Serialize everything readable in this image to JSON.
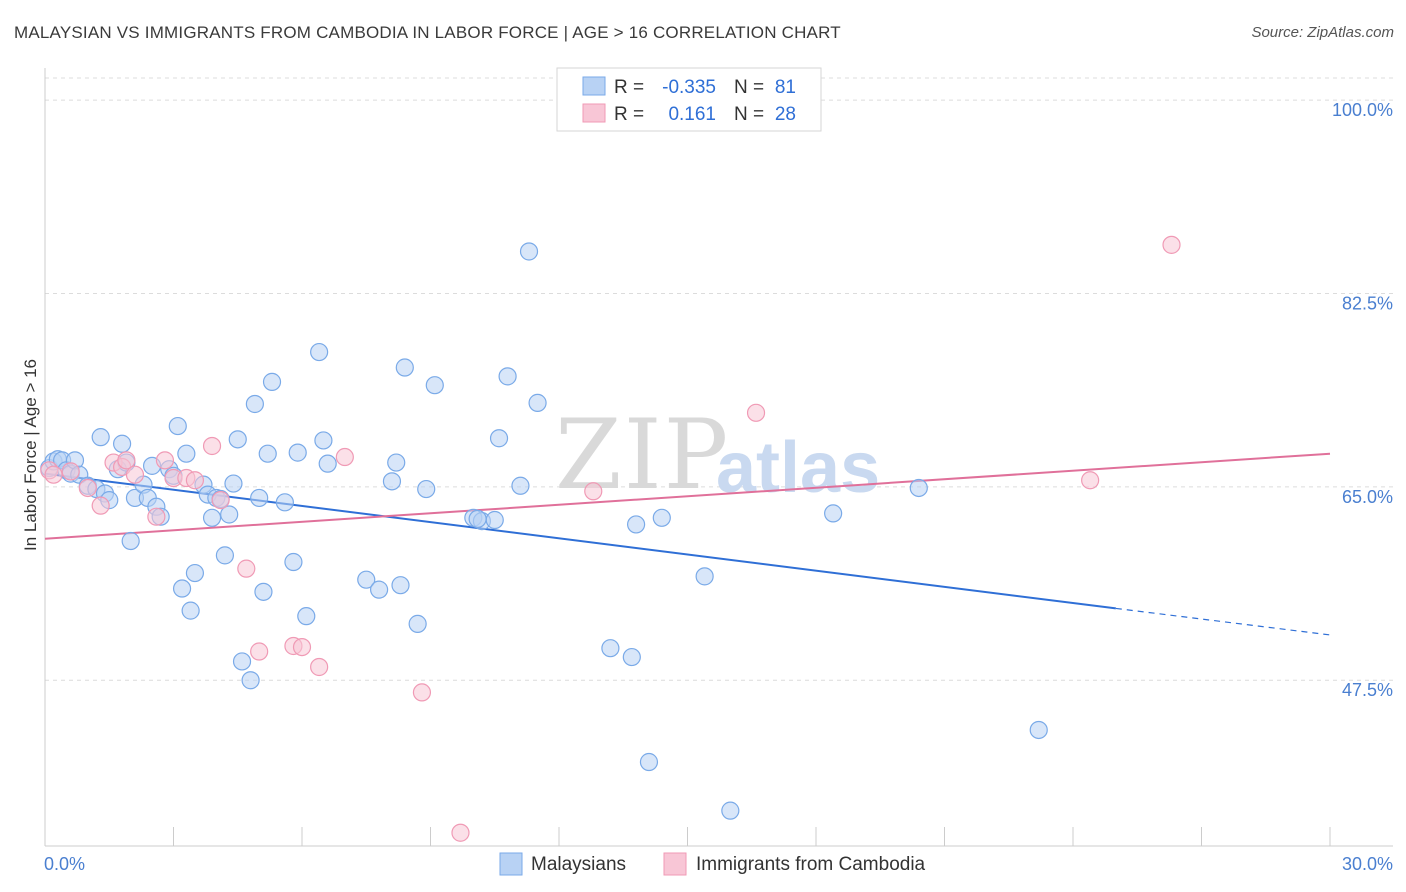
{
  "title": "MALAYSIAN VS IMMIGRANTS FROM CAMBODIA IN LABOR FORCE | AGE > 16 CORRELATION CHART",
  "source": "Source: ZipAtlas.com",
  "watermark": {
    "part1": "ZIP",
    "part2": "atlas"
  },
  "chart_data": {
    "type": "scatter",
    "title": "MALAYSIAN VS IMMIGRANTS FROM CAMBODIA IN LABOR FORCE | AGE > 16 CORRELATION CHART",
    "xlabel": "",
    "ylabel": "In Labor Force | Age > 16",
    "xlim": [
      0,
      30
    ],
    "ylim": [
      32.5,
      102
    ],
    "x_tick_labels": [
      "0.0%",
      "30.0%"
    ],
    "y_ticks": [
      47.5,
      65.0,
      82.5,
      100.0
    ],
    "y_tick_labels": [
      "47.5%",
      "65.0%",
      "82.5%",
      "100.0%"
    ],
    "grid": true,
    "legend_position": "top-center",
    "stats": [
      {
        "r_label": "R =",
        "r_value": "-0.335",
        "n_label": "N =",
        "n_value": "81"
      },
      {
        "r_label": "R =",
        "r_value": "0.161",
        "n_label": "N =",
        "n_value": "28"
      }
    ],
    "series": [
      {
        "name": "Malaysians",
        "color": "#7aaae8",
        "fill": "#b8d2f4",
        "line_color": "#2f6fd6",
        "trend": {
          "x0": 0,
          "y0": 66.2,
          "x1": 25.0,
          "y1": 54.0,
          "dash_to_x": 30.0,
          "dash_to_y": 51.6
        },
        "points": [
          [
            0.1,
            66.7
          ],
          [
            0.2,
            67.3
          ],
          [
            0.3,
            67.5
          ],
          [
            0.4,
            67.4
          ],
          [
            0.5,
            66.5
          ],
          [
            0.6,
            66.2
          ],
          [
            0.7,
            67.4
          ],
          [
            0.8,
            66.1
          ],
          [
            1.0,
            65.1
          ],
          [
            1.2,
            64.8
          ],
          [
            1.3,
            69.5
          ],
          [
            1.4,
            64.4
          ],
          [
            1.5,
            63.8
          ],
          [
            1.7,
            66.6
          ],
          [
            1.8,
            68.9
          ],
          [
            1.9,
            67.2
          ],
          [
            2.0,
            60.1
          ],
          [
            2.1,
            64.0
          ],
          [
            2.3,
            65.2
          ],
          [
            2.4,
            64.0
          ],
          [
            2.5,
            66.9
          ],
          [
            2.6,
            63.2
          ],
          [
            2.7,
            62.3
          ],
          [
            2.9,
            66.6
          ],
          [
            3.0,
            66.0
          ],
          [
            3.1,
            70.5
          ],
          [
            3.2,
            55.8
          ],
          [
            3.3,
            68.0
          ],
          [
            3.4,
            53.8
          ],
          [
            3.5,
            57.2
          ],
          [
            3.7,
            65.2
          ],
          [
            3.8,
            64.3
          ],
          [
            3.9,
            62.2
          ],
          [
            4.0,
            64.0
          ],
          [
            4.1,
            63.9
          ],
          [
            4.2,
            58.8
          ],
          [
            4.3,
            62.5
          ],
          [
            4.4,
            65.3
          ],
          [
            4.5,
            69.3
          ],
          [
            4.6,
            49.2
          ],
          [
            4.8,
            47.5
          ],
          [
            4.9,
            72.5
          ],
          [
            5.0,
            64.0
          ],
          [
            5.1,
            55.5
          ],
          [
            5.2,
            68.0
          ],
          [
            5.3,
            74.5
          ],
          [
            5.6,
            63.6
          ],
          [
            5.8,
            58.2
          ],
          [
            5.9,
            68.1
          ],
          [
            6.1,
            53.3
          ],
          [
            6.4,
            77.2
          ],
          [
            6.5,
            69.2
          ],
          [
            6.6,
            67.1
          ],
          [
            7.5,
            56.6
          ],
          [
            7.8,
            55.7
          ],
          [
            8.1,
            65.5
          ],
          [
            8.2,
            67.2
          ],
          [
            8.3,
            56.1
          ],
          [
            8.4,
            75.8
          ],
          [
            8.7,
            52.6
          ],
          [
            8.9,
            64.8
          ],
          [
            9.1,
            74.2
          ],
          [
            10.0,
            62.2
          ],
          [
            10.2,
            61.9
          ],
          [
            10.5,
            62.0
          ],
          [
            10.6,
            69.4
          ],
          [
            10.8,
            75.0
          ],
          [
            11.1,
            65.1
          ],
          [
            11.3,
            86.3
          ],
          [
            11.5,
            72.6
          ],
          [
            13.2,
            50.4
          ],
          [
            13.7,
            49.6
          ],
          [
            13.8,
            61.6
          ],
          [
            14.1,
            40.1
          ],
          [
            14.4,
            62.2
          ],
          [
            15.4,
            56.9
          ],
          [
            16.0,
            35.7
          ],
          [
            18.4,
            62.6
          ],
          [
            20.4,
            64.9
          ],
          [
            23.2,
            43.0
          ],
          [
            10.1,
            62.1
          ]
        ]
      },
      {
        "name": "Immigrants from Cambodia",
        "color": "#f09ab5",
        "fill": "#f8c6d6",
        "line_color": "#e0709a",
        "trend": {
          "x0": 0,
          "y0": 60.3,
          "x1": 30.0,
          "y1": 68.0
        },
        "points": [
          [
            0.1,
            66.5
          ],
          [
            0.2,
            66.1
          ],
          [
            0.6,
            66.4
          ],
          [
            1.0,
            64.9
          ],
          [
            1.3,
            63.3
          ],
          [
            1.6,
            67.2
          ],
          [
            1.8,
            66.8
          ],
          [
            1.9,
            67.4
          ],
          [
            2.1,
            66.1
          ],
          [
            2.6,
            62.3
          ],
          [
            2.8,
            67.4
          ],
          [
            3.0,
            65.8
          ],
          [
            3.3,
            65.8
          ],
          [
            3.5,
            65.6
          ],
          [
            3.9,
            68.7
          ],
          [
            4.1,
            63.8
          ],
          [
            4.7,
            57.6
          ],
          [
            5.0,
            50.1
          ],
          [
            5.8,
            50.6
          ],
          [
            6.0,
            50.5
          ],
          [
            6.4,
            48.7
          ],
          [
            7.0,
            67.7
          ],
          [
            8.8,
            46.4
          ],
          [
            9.7,
            33.7
          ],
          [
            12.8,
            64.6
          ],
          [
            16.6,
            71.7
          ],
          [
            24.4,
            65.6
          ],
          [
            26.3,
            86.9
          ]
        ]
      }
    ]
  }
}
